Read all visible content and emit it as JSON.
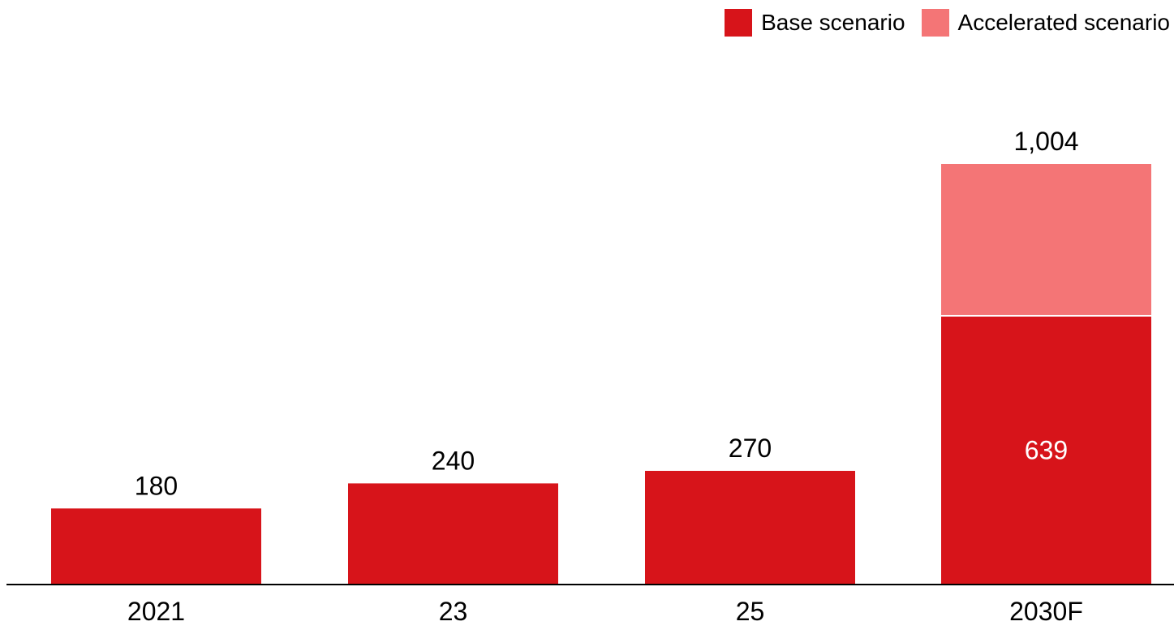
{
  "chart_data": {
    "type": "bar",
    "stacked": true,
    "categories": [
      "2021",
      "23",
      "25",
      "2030F"
    ],
    "series": [
      {
        "name": "Base scenario",
        "values": [
          180,
          240,
          270,
          639
        ],
        "color": "#D7141A"
      },
      {
        "name": "Accelerated scenario",
        "values": [
          0,
          0,
          0,
          365
        ],
        "color": "#F47576"
      }
    ],
    "totals": [
      "180",
      "240",
      "270",
      "1,004"
    ],
    "segment_labels": [
      "",
      "",
      "",
      "639"
    ],
    "ylim": [
      0,
      1004
    ],
    "grid": false,
    "legend": "top-right",
    "axis_color": "#000000",
    "title": "",
    "xlabel": "",
    "ylabel": ""
  }
}
